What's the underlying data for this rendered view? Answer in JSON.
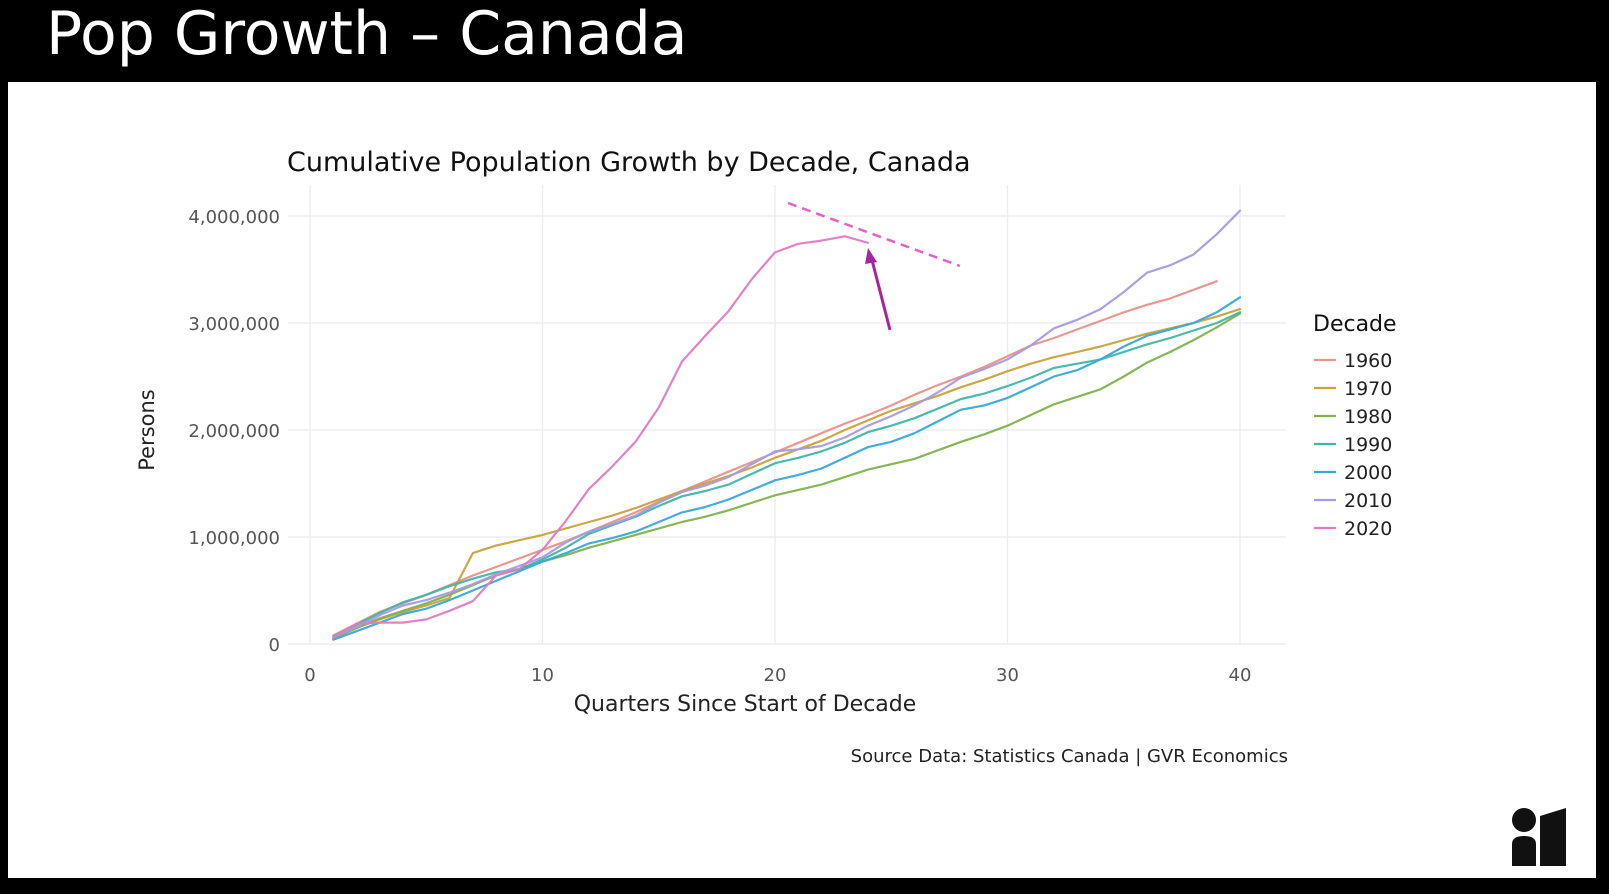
{
  "slide": {
    "title": "Pop Growth – Canada",
    "logo_icon": "brand-logo-icon"
  },
  "chart_data": {
    "type": "line",
    "title": "Cumulative Population Growth by Decade, Canada",
    "xlabel": "Quarters Since Start of Decade",
    "ylabel": "Persons",
    "xlim": [
      0,
      42
    ],
    "ylim": [
      0,
      4100000
    ],
    "xticks": [
      0,
      10,
      20,
      30,
      40
    ],
    "xtick_labels": [
      "0",
      "10",
      "20",
      "30",
      "40"
    ],
    "yticks": [
      0,
      1000000,
      2000000,
      3000000,
      4000000
    ],
    "ytick_labels": [
      "0",
      "1,000,000",
      "2,000,000",
      "3,000,000",
      "4,000,000"
    ],
    "grid": true,
    "legend": {
      "title": "Decade",
      "placement": "right"
    },
    "source": "Source Data: Statistics Canada | GVR Economics",
    "series": [
      {
        "name": "1960",
        "color": "#e8928a",
        "x": [
          1,
          2,
          3,
          4,
          5,
          6,
          7,
          8,
          9,
          10,
          11,
          12,
          13,
          14,
          15,
          16,
          17,
          18,
          19,
          20,
          21,
          22,
          23,
          24,
          25,
          26,
          27,
          28,
          29,
          30,
          31,
          32,
          33,
          34,
          35,
          36,
          37,
          38,
          39
        ],
        "y": [
          80000,
          190000,
          300000,
          380000,
          460000,
          550000,
          640000,
          720000,
          800000,
          880000,
          960000,
          1050000,
          1140000,
          1230000,
          1330000,
          1430000,
          1520000,
          1610000,
          1700000,
          1790000,
          1880000,
          1970000,
          2060000,
          2140000,
          2230000,
          2330000,
          2420000,
          2500000,
          2590000,
          2690000,
          2790000,
          2860000,
          2940000,
          3020000,
          3100000,
          3170000,
          3230000,
          3310000,
          3390000
        ]
      },
      {
        "name": "1970",
        "color": "#c9a23c",
        "x": [
          1,
          2,
          3,
          4,
          5,
          6,
          7,
          8,
          9,
          10,
          11,
          12,
          13,
          14,
          15,
          16,
          17,
          18,
          19,
          20,
          21,
          22,
          23,
          24,
          25,
          26,
          27,
          28,
          29,
          30,
          31,
          32,
          33,
          34,
          35,
          36,
          37,
          38,
          39,
          40
        ],
        "y": [
          60000,
          150000,
          230000,
          300000,
          360000,
          430000,
          850000,
          920000,
          970000,
          1020000,
          1080000,
          1140000,
          1200000,
          1270000,
          1350000,
          1430000,
          1500000,
          1570000,
          1650000,
          1740000,
          1820000,
          1900000,
          2000000,
          2090000,
          2180000,
          2250000,
          2320000,
          2400000,
          2470000,
          2550000,
          2620000,
          2680000,
          2730000,
          2780000,
          2840000,
          2900000,
          2950000,
          3000000,
          3060000,
          3130000
        ]
      },
      {
        "name": "1980",
        "color": "#7fb24c",
        "x": [
          1,
          2,
          3,
          4,
          5,
          6,
          7,
          8,
          9,
          10,
          11,
          12,
          13,
          14,
          15,
          16,
          17,
          18,
          19,
          20,
          21,
          22,
          23,
          24,
          25,
          26,
          27,
          28,
          29,
          30,
          31,
          32,
          33,
          34,
          35,
          36,
          37,
          38,
          39,
          40
        ],
        "y": [
          50000,
          150000,
          240000,
          310000,
          380000,
          460000,
          550000,
          640000,
          700000,
          770000,
          830000,
          900000,
          960000,
          1020000,
          1080000,
          1140000,
          1190000,
          1250000,
          1320000,
          1390000,
          1440000,
          1490000,
          1560000,
          1630000,
          1680000,
          1730000,
          1810000,
          1890000,
          1960000,
          2040000,
          2140000,
          2240000,
          2310000,
          2380000,
          2500000,
          2630000,
          2730000,
          2840000,
          2960000,
          3090000
        ]
      },
      {
        "name": "1990",
        "color": "#3fb6a8",
        "x": [
          1,
          2,
          3,
          4,
          5,
          6,
          7,
          8,
          9,
          10,
          11,
          12,
          13,
          14,
          15,
          16,
          17,
          18,
          19,
          20,
          21,
          22,
          23,
          24,
          25,
          26,
          27,
          28,
          29,
          30,
          31,
          32,
          33,
          34,
          35,
          36,
          37,
          38,
          39,
          40
        ],
        "y": [
          70000,
          180000,
          290000,
          390000,
          460000,
          540000,
          610000,
          670000,
          700000,
          790000,
          900000,
          1030000,
          1110000,
          1190000,
          1290000,
          1380000,
          1430000,
          1490000,
          1590000,
          1690000,
          1740000,
          1800000,
          1880000,
          1980000,
          2040000,
          2110000,
          2200000,
          2290000,
          2340000,
          2410000,
          2490000,
          2580000,
          2620000,
          2660000,
          2730000,
          2800000,
          2860000,
          2930000,
          3000000,
          3100000
        ]
      },
      {
        "name": "2000",
        "color": "#39a8d8",
        "x": [
          1,
          2,
          3,
          4,
          5,
          6,
          7,
          8,
          9,
          10,
          11,
          12,
          13,
          14,
          15,
          16,
          17,
          18,
          19,
          20,
          21,
          22,
          23,
          24,
          25,
          26,
          27,
          28,
          29,
          30,
          31,
          32,
          33,
          34,
          35,
          36,
          37,
          38,
          39,
          40
        ],
        "y": [
          40000,
          120000,
          200000,
          280000,
          330000,
          410000,
          500000,
          590000,
          680000,
          770000,
          850000,
          940000,
          990000,
          1050000,
          1140000,
          1230000,
          1280000,
          1350000,
          1440000,
          1530000,
          1580000,
          1640000,
          1740000,
          1840000,
          1890000,
          1970000,
          2080000,
          2190000,
          2230000,
          2300000,
          2400000,
          2500000,
          2560000,
          2660000,
          2780000,
          2880000,
          2940000,
          3000000,
          3100000,
          3240000
        ]
      },
      {
        "name": "2010",
        "color": "#a59be0",
        "x": [
          1,
          2,
          3,
          4,
          5,
          6,
          7,
          8,
          9,
          10,
          11,
          12,
          13,
          14,
          15,
          16,
          17,
          18,
          19,
          20,
          21,
          22,
          23,
          24,
          25,
          26,
          27,
          28,
          29,
          30,
          31,
          32,
          33,
          34,
          35,
          36,
          37,
          38,
          39,
          40
        ],
        "y": [
          60000,
          160000,
          270000,
          360000,
          410000,
          480000,
          560000,
          650000,
          730000,
          810000,
          950000,
          1050000,
          1120000,
          1200000,
          1320000,
          1420000,
          1480000,
          1560000,
          1680000,
          1800000,
          1820000,
          1850000,
          1930000,
          2040000,
          2130000,
          2230000,
          2350000,
          2490000,
          2570000,
          2660000,
          2790000,
          2950000,
          3030000,
          3130000,
          3290000,
          3470000,
          3540000,
          3640000,
          3830000,
          4050000
        ]
      },
      {
        "name": "2020",
        "color": "#e27ac4",
        "x": [
          1,
          2,
          3,
          4,
          5,
          6,
          7,
          8,
          9,
          10,
          11,
          12,
          13,
          14,
          15,
          16,
          17,
          18,
          19,
          20,
          21,
          22,
          23,
          24
        ],
        "y": [
          60000,
          190000,
          200000,
          200000,
          230000,
          310000,
          400000,
          640000,
          700000,
          880000,
          1150000,
          1450000,
          1660000,
          1890000,
          2210000,
          2640000,
          2880000,
          3110000,
          3410000,
          3660000,
          3740000,
          3770000,
          3810000,
          3750000
        ]
      }
    ]
  }
}
